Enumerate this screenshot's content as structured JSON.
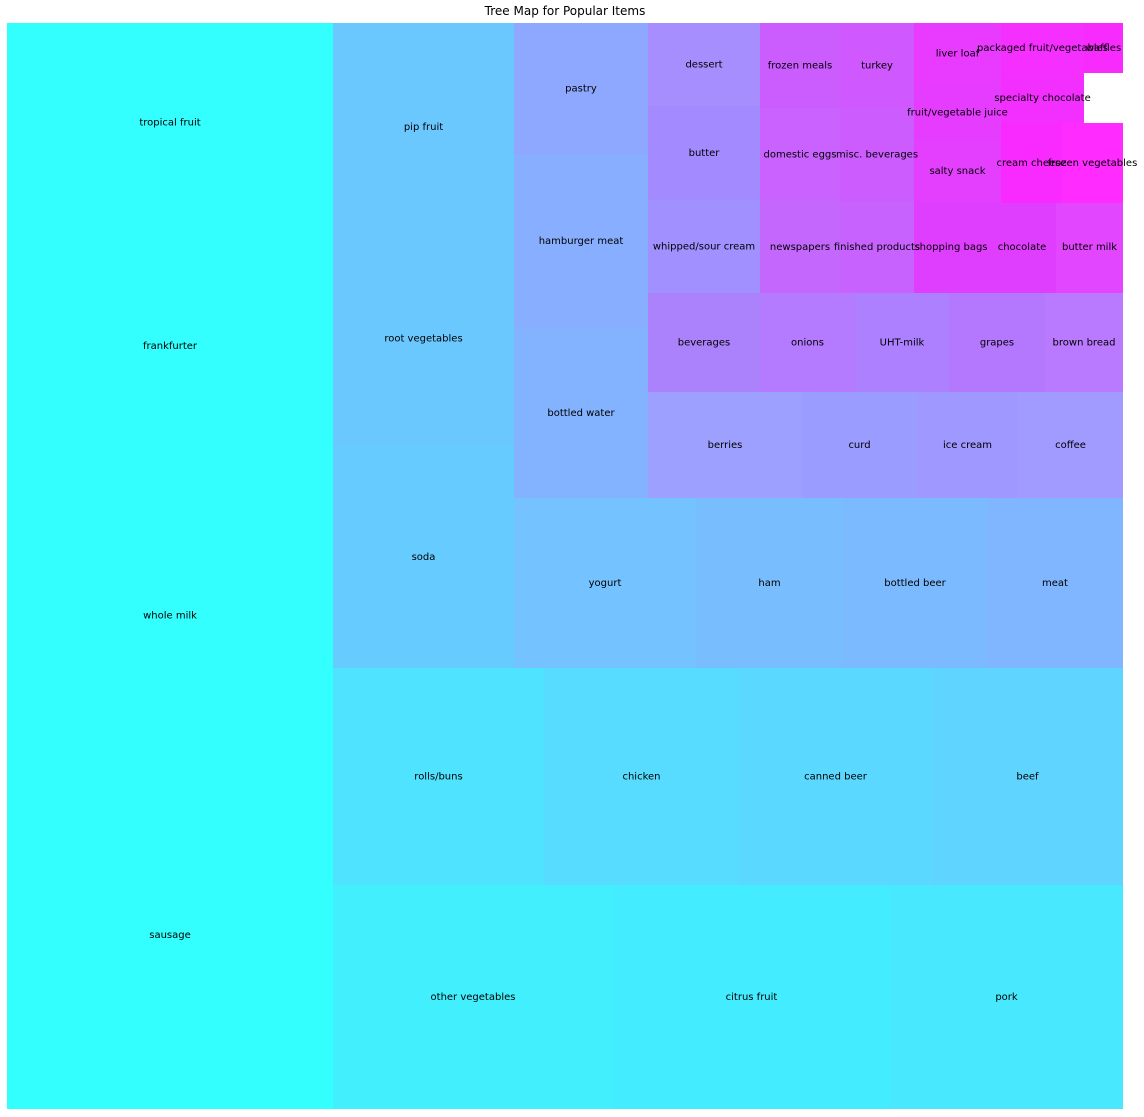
{
  "chart_data": {
    "type": "treemap",
    "title": "Tree Map for Popular Items",
    "items": [
      {
        "label": "tropical fruit",
        "value": 73,
        "color": "#33ffff"
      },
      {
        "label": "frankfurter",
        "value": 94,
        "color": "#33ffff"
      },
      {
        "label": "whole milk",
        "value": 174,
        "color": "#33ffff"
      },
      {
        "label": "sausage",
        "value": 117,
        "color": "#33ffff"
      },
      {
        "label": "pip fruit",
        "value": 24,
        "color": "#6bc8ff"
      },
      {
        "label": "root vegetables",
        "value": 25,
        "color": "#6bc8ff"
      },
      {
        "label": "soda",
        "value": 24,
        "color": "#66ccff"
      },
      {
        "label": "rolls/buns",
        "value": 29,
        "color": "#4fe3ff"
      },
      {
        "label": "chicken",
        "value": 27,
        "color": "#57dcff"
      },
      {
        "label": "canned beer",
        "value": 27,
        "color": "#5bd8ff"
      },
      {
        "label": "beef",
        "value": 27,
        "color": "#5fd4ff"
      },
      {
        "label": "other vegetables",
        "value": 40,
        "color": "#42effd"
      },
      {
        "label": "citrus fruit",
        "value": 40,
        "color": "#44ecff"
      },
      {
        "label": "pork",
        "value": 33,
        "color": "#48e8ff"
      },
      {
        "label": "pastry",
        "value": 8,
        "color": "#8ea8ff"
      },
      {
        "label": "hamburger meat",
        "value": 11,
        "color": "#88aeff"
      },
      {
        "label": "bottled water",
        "value": 10,
        "color": "#83b2ff"
      },
      {
        "label": "yogurt",
        "value": 13,
        "color": "#74c2ff"
      },
      {
        "label": "ham",
        "value": 11,
        "color": "#78beff"
      },
      {
        "label": "bottled beer",
        "value": 11,
        "color": "#7cbaff"
      },
      {
        "label": "meat",
        "value": 10,
        "color": "#7fb6ff"
      },
      {
        "label": "dessert",
        "value": 3,
        "color": "#a68eff"
      },
      {
        "label": "butter",
        "value": 4,
        "color": "#a38aff"
      },
      {
        "label": "whipped/sour cream",
        "value": 5,
        "color": "#a190ff"
      },
      {
        "label": "beverages",
        "value": 5,
        "color": "#ac82fc"
      },
      {
        "label": "berries",
        "value": 8,
        "color": "#9ea0ff"
      },
      {
        "label": "curd",
        "value": 6,
        "color": "#9a9cff"
      },
      {
        "label": "ice cream",
        "value": 5,
        "color": "#9e98ff"
      },
      {
        "label": "coffee",
        "value": 6,
        "color": "#a19aff"
      },
      {
        "label": "onions",
        "value": 4,
        "color": "#b47aff"
      },
      {
        "label": "UHT-milk",
        "value": 4,
        "color": "#ad80ff"
      },
      {
        "label": "grapes",
        "value": 4,
        "color": "#b478ff"
      },
      {
        "label": "brown bread",
        "value": 3,
        "color": "#b97aff"
      },
      {
        "label": "frozen meals",
        "value": 3,
        "color": "#cb5cfe"
      },
      {
        "label": "turkey",
        "value": 3,
        "color": "#cf58ff"
      },
      {
        "label": "domestic eggs",
        "value": 3,
        "color": "#c962ff"
      },
      {
        "label": "misc. beverages",
        "value": 3,
        "color": "#cd5cff"
      },
      {
        "label": "newspapers",
        "value": 3,
        "color": "#c468fd"
      },
      {
        "label": "finished products",
        "value": 3,
        "color": "#c862ff"
      },
      {
        "label": "shopping bags",
        "value": 3,
        "color": "#e03eff"
      },
      {
        "label": "chocolate",
        "value": 3,
        "color": "#e03eff"
      },
      {
        "label": "butter milk",
        "value": 2,
        "color": "#e246ff"
      },
      {
        "label": "liver loaf",
        "value": 2,
        "color": "#e93aff"
      },
      {
        "label": "packaged fruit/vegetables",
        "value": 2,
        "color": "#f42fff"
      },
      {
        "label": "waffles",
        "value": 2,
        "color": "#f82bff"
      },
      {
        "label": "fruit/vegetable juice",
        "value": 2,
        "color": "#e63cff"
      },
      {
        "label": "specialty chocolate",
        "value": 2,
        "color": "#f22fff"
      },
      {
        "label": "salty snack",
        "value": 2,
        "color": "#e43fff"
      },
      {
        "label": "cream cheese",
        "value": 2,
        "color": "#f82aff"
      },
      {
        "label": "frozen vegetables",
        "value": 2,
        "color": "#ff2bff"
      }
    ]
  }
}
